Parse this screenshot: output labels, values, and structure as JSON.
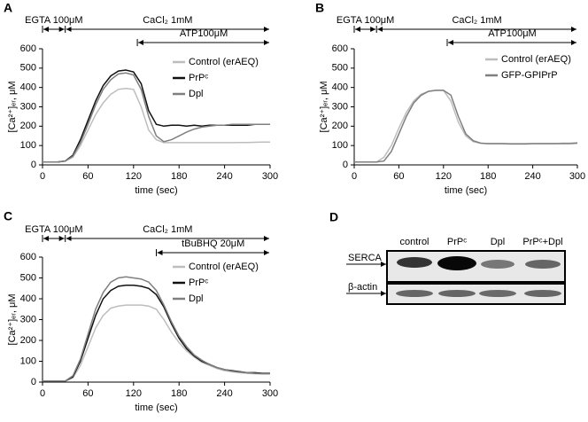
{
  "chart_data": [
    {
      "type": "line",
      "label": "A",
      "xlabel": "time (sec)",
      "ylabel": "[Ca²⁺]ₑᵣ, μM",
      "xlim": [
        0,
        300
      ],
      "xticks": [
        0,
        60,
        120,
        180,
        240,
        300
      ],
      "ylim": [
        0,
        600
      ],
      "yticks": [
        0,
        100,
        200,
        300,
        400,
        500,
        600
      ],
      "annotations": [
        {
          "text": "EGTA 100μM",
          "x0": 0,
          "x1": 30
        },
        {
          "text": "CaCl₂ 1mM",
          "x0": 30,
          "x1": 300
        },
        {
          "text": "ATP100μM",
          "x0": 125,
          "x1": 300
        }
      ],
      "x": [
        0,
        10,
        20,
        30,
        40,
        50,
        60,
        70,
        80,
        90,
        100,
        110,
        120,
        130,
        140,
        150,
        160,
        170,
        180,
        190,
        200,
        210,
        220,
        230,
        240,
        250,
        260,
        270,
        280,
        290,
        300
      ],
      "series": [
        {
          "name": "Control (erAEQ)",
          "color": "#bdbdbd",
          "values": [
            15,
            15,
            15,
            20,
            40,
            100,
            180,
            260,
            320,
            365,
            390,
            395,
            390,
            300,
            180,
            130,
            115,
            115,
            115,
            115,
            115,
            115,
            115,
            115,
            115,
            115,
            116,
            116,
            117,
            118,
            118
          ]
        },
        {
          "name": "PrPᶜ",
          "color": "#111111",
          "values": [
            15,
            15,
            15,
            20,
            50,
            130,
            230,
            330,
            410,
            460,
            485,
            490,
            480,
            420,
            280,
            210,
            200,
            205,
            205,
            200,
            205,
            200,
            205,
            205,
            205,
            205,
            205,
            205,
            210,
            210,
            210
          ]
        },
        {
          "name": "Dpl",
          "color": "#7f7f7f",
          "values": [
            15,
            15,
            15,
            20,
            45,
            115,
            210,
            310,
            390,
            440,
            470,
            475,
            465,
            390,
            250,
            150,
            120,
            130,
            150,
            170,
            185,
            195,
            200,
            205,
            205,
            210,
            210,
            210,
            210,
            210,
            210
          ]
        }
      ]
    },
    {
      "type": "line",
      "label": "B",
      "xlabel": "time (sec)",
      "ylabel": "[Ca²⁺]ₑᵣ, μM",
      "xlim": [
        0,
        300
      ],
      "xticks": [
        0,
        60,
        120,
        180,
        240,
        300
      ],
      "ylim": [
        0,
        600
      ],
      "yticks": [
        0,
        100,
        200,
        300,
        400,
        500,
        600
      ],
      "annotations": [
        {
          "text": "EGTA 100μM",
          "x0": 0,
          "x1": 30
        },
        {
          "text": "CaCl₂ 1mM",
          "x0": 30,
          "x1": 300
        },
        {
          "text": "ATP100μM",
          "x0": 125,
          "x1": 300
        }
      ],
      "x": [
        0,
        10,
        20,
        30,
        40,
        50,
        60,
        70,
        80,
        90,
        100,
        110,
        120,
        130,
        140,
        150,
        160,
        170,
        180,
        190,
        200,
        210,
        220,
        230,
        240,
        250,
        260,
        270,
        280,
        290,
        300
      ],
      "series": [
        {
          "name": "Control (erAEQ)",
          "color": "#bdbdbd",
          "values": [
            15,
            15,
            15,
            15,
            40,
            100,
            190,
            270,
            330,
            365,
            380,
            385,
            385,
            330,
            220,
            150,
            120,
            112,
            110,
            110,
            110,
            110,
            110,
            110,
            110,
            110,
            110,
            110,
            112,
            112,
            115
          ]
        },
        {
          "name": "GFP-GPIPrP",
          "color": "#7f7f7f",
          "values": [
            15,
            15,
            15,
            15,
            20,
            70,
            160,
            250,
            320,
            360,
            380,
            385,
            385,
            360,
            250,
            160,
            125,
            112,
            110,
            110,
            110,
            108,
            108,
            108,
            110,
            110,
            110,
            110,
            110,
            110,
            112
          ]
        }
      ]
    },
    {
      "type": "line",
      "label": "C",
      "xlabel": "time (sec)",
      "ylabel": "[Ca²⁺]ₑᵣ, μM",
      "xlim": [
        0,
        300
      ],
      "xticks": [
        0,
        60,
        120,
        180,
        240,
        300
      ],
      "ylim": [
        0,
        600
      ],
      "yticks": [
        0,
        100,
        200,
        300,
        400,
        500,
        600
      ],
      "annotations": [
        {
          "text": "EGTA 100μM",
          "x0": 0,
          "x1": 30
        },
        {
          "text": "CaCl₂ 1mM",
          "x0": 30,
          "x1": 300
        },
        {
          "text": "tBuBHQ 20μM",
          "x0": 150,
          "x1": 300
        }
      ],
      "x": [
        0,
        10,
        20,
        30,
        40,
        50,
        60,
        70,
        80,
        90,
        100,
        110,
        120,
        130,
        140,
        150,
        160,
        170,
        180,
        190,
        200,
        210,
        220,
        230,
        240,
        250,
        260,
        270,
        280,
        290,
        300
      ],
      "series": [
        {
          "name": "Control (erAEQ)",
          "color": "#bdbdbd",
          "values": [
            5,
            5,
            5,
            5,
            20,
            80,
            170,
            260,
            320,
            355,
            365,
            370,
            370,
            370,
            365,
            350,
            300,
            240,
            190,
            150,
            120,
            95,
            80,
            65,
            55,
            50,
            45,
            42,
            40,
            40,
            40
          ]
        },
        {
          "name": "PrPᶜ",
          "color": "#111111",
          "values": [
            5,
            5,
            5,
            5,
            25,
            100,
            210,
            320,
            400,
            440,
            460,
            465,
            465,
            460,
            450,
            420,
            360,
            280,
            210,
            160,
            125,
            100,
            85,
            70,
            60,
            55,
            50,
            45,
            45,
            42,
            42
          ]
        },
        {
          "name": "Dpl",
          "color": "#7f7f7f",
          "values": [
            5,
            5,
            5,
            5,
            30,
            110,
            230,
            350,
            430,
            480,
            500,
            505,
            500,
            495,
            480,
            440,
            370,
            290,
            220,
            170,
            130,
            105,
            85,
            70,
            60,
            52,
            48,
            45,
            42,
            40,
            40
          ]
        }
      ]
    }
  ],
  "blot": {
    "label": "D",
    "lanes": [
      "control",
      "PrPᶜ",
      "Dpl",
      "PrPᶜ+Dpl"
    ],
    "rows": [
      "SERCA",
      "β-actin"
    ]
  }
}
